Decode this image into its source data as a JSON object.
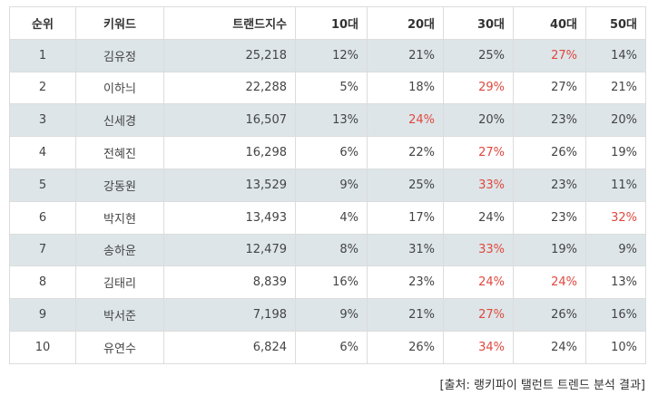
{
  "headers": [
    "순위",
    "키워드",
    "트랜드지수",
    "10대",
    "20대",
    "30대",
    "40대",
    "50대"
  ],
  "rows": [
    {
      "rank": "1",
      "keyword": "김유정",
      "index": "25,218",
      "a10": "12%",
      "a20": "21%",
      "a30": "25%",
      "a40": "27%",
      "a50": "14%",
      "hi": "a40"
    },
    {
      "rank": "2",
      "keyword": "이하늬",
      "index": "22,288",
      "a10": "5%",
      "a20": "18%",
      "a30": "29%",
      "a40": "27%",
      "a50": "21%",
      "hi": "a30"
    },
    {
      "rank": "3",
      "keyword": "신세경",
      "index": "16,507",
      "a10": "13%",
      "a20": "24%",
      "a30": "20%",
      "a40": "23%",
      "a50": "20%",
      "hi": "a20"
    },
    {
      "rank": "4",
      "keyword": "전혜진",
      "index": "16,298",
      "a10": "6%",
      "a20": "22%",
      "a30": "27%",
      "a40": "26%",
      "a50": "19%",
      "hi": "a30"
    },
    {
      "rank": "5",
      "keyword": "강동원",
      "index": "13,529",
      "a10": "9%",
      "a20": "25%",
      "a30": "33%",
      "a40": "23%",
      "a50": "11%",
      "hi": "a30"
    },
    {
      "rank": "6",
      "keyword": "박지현",
      "index": "13,493",
      "a10": "4%",
      "a20": "17%",
      "a30": "24%",
      "a40": "23%",
      "a50": "32%",
      "hi": "a50"
    },
    {
      "rank": "7",
      "keyword": "송하윤",
      "index": "12,479",
      "a10": "8%",
      "a20": "31%",
      "a30": "33%",
      "a40": "19%",
      "a50": "9%",
      "hi": "a30"
    },
    {
      "rank": "8",
      "keyword": "김태리",
      "index": "8,839",
      "a10": "16%",
      "a20": "23%",
      "a30": "24%",
      "a40": "24%",
      "a50": "13%",
      "hi": "a30,a40"
    },
    {
      "rank": "9",
      "keyword": "박서준",
      "index": "7,198",
      "a10": "9%",
      "a20": "21%",
      "a30": "27%",
      "a40": "26%",
      "a50": "16%",
      "hi": "a30"
    },
    {
      "rank": "10",
      "keyword": "유연수",
      "index": "6,824",
      "a10": "6%",
      "a20": "26%",
      "a30": "34%",
      "a40": "24%",
      "a50": "10%",
      "hi": "a30"
    }
  ],
  "source": "[출처: 랭키파이 탤런트 트렌드 분석 결과]",
  "colors": {
    "highlight": "#e0483e",
    "stripe": "#dde5e8",
    "border": "#dcdcdc"
  }
}
